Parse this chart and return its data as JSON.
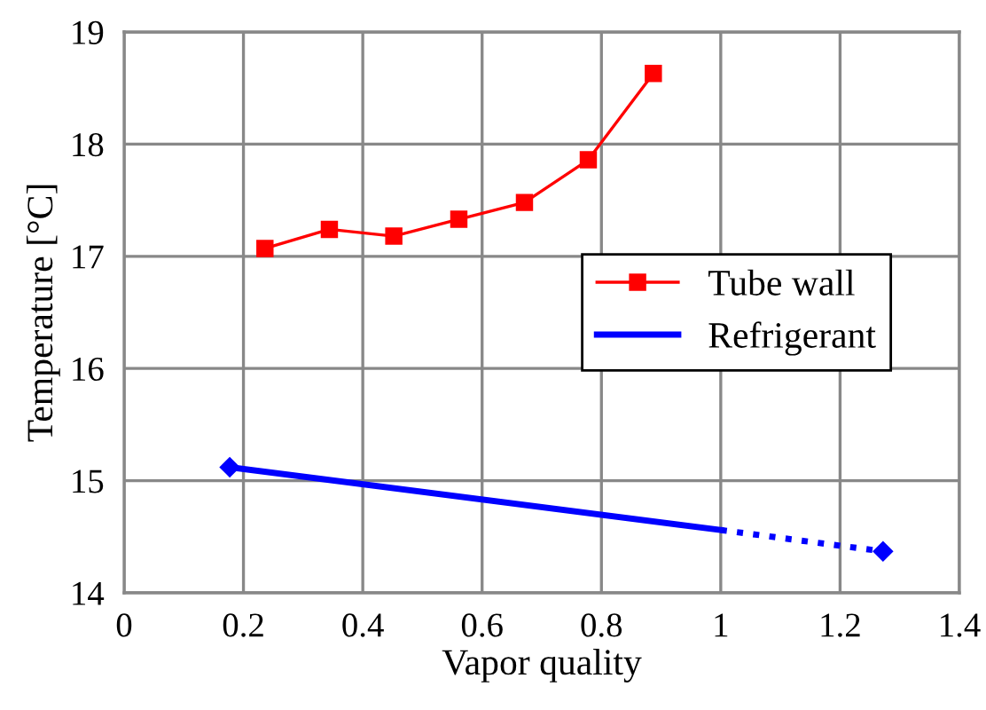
{
  "chart_data": {
    "type": "line",
    "xlabel": "Vapor quality",
    "ylabel": "Temperature [°C]",
    "xlim": [
      0,
      1.4
    ],
    "xticks": [
      0,
      0.2,
      0.4,
      0.6,
      0.8,
      1,
      1.2,
      1.4
    ],
    "ylim": [
      14,
      19
    ],
    "yticks": [
      14,
      15,
      16,
      17,
      18,
      19
    ],
    "grid": true,
    "legend": "right",
    "series": [
      {
        "name": "Tube wall",
        "color": "#ff0000",
        "marker": "square",
        "line_style": "solid",
        "x": [
          0.236,
          0.344,
          0.452,
          0.561,
          0.671,
          0.778,
          0.887
        ],
        "values": [
          17.07,
          17.24,
          17.18,
          17.33,
          17.48,
          17.86,
          18.63
        ]
      },
      {
        "name": "Refrigerant",
        "color": "#0000ff",
        "marker": "diamond",
        "line_style": "solid",
        "x": [
          0.177,
          1.0
        ],
        "values": [
          15.12,
          14.56
        ]
      },
      {
        "color": "#0000ff",
        "marker": "diamond",
        "line_style": "dotted",
        "x": [
          1.0,
          1.272
        ],
        "values": [
          14.56,
          14.37
        ]
      }
    ]
  }
}
